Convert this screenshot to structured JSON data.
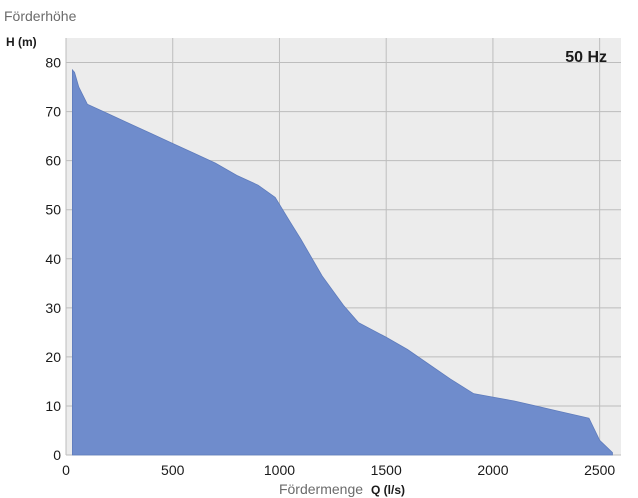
{
  "chart_data": {
    "type": "area",
    "title": "",
    "ylabel": "Förderhöhe",
    "yunit": "H (m)",
    "xlabel": "Fördermenge",
    "xunit": "Q (l/s)",
    "annotation": "50 Hz",
    "xlim": [
      0,
      2600
    ],
    "ylim": [
      0,
      85
    ],
    "xticks": [
      "0",
      "500",
      "1000",
      "1500",
      "2000",
      "2500"
    ],
    "yticks": [
      "0",
      "10",
      "20",
      "30",
      "40",
      "50",
      "60",
      "70",
      "80"
    ],
    "grid": true,
    "legend": "none",
    "series": [
      {
        "fill": "#6f8ccc",
        "x": [
          30,
          40,
          60,
          100,
          200,
          300,
          400,
          500,
          600,
          700,
          800,
          900,
          980,
          1050,
          1100,
          1200,
          1300,
          1370,
          1500,
          1600,
          1700,
          1800,
          1910,
          2000,
          2100,
          2200,
          2300,
          2400,
          2450,
          2500,
          2560
        ],
        "y": [
          78.5,
          78,
          75,
          71.5,
          69.5,
          67.5,
          65.5,
          63.5,
          61.5,
          59.5,
          57,
          55,
          52.5,
          47.5,
          44,
          36.5,
          30.5,
          27,
          24,
          21.5,
          18.5,
          15.5,
          12.5,
          11.8,
          11,
          10,
          9,
          8,
          7.5,
          3,
          0.5
        ]
      }
    ]
  },
  "colors": {
    "plot_background": "#ececec",
    "grid": "#bdbdbd",
    "fill": "#6f8ccc",
    "text": "#1a1a1a",
    "axis_title": "#6b6b6b"
  }
}
